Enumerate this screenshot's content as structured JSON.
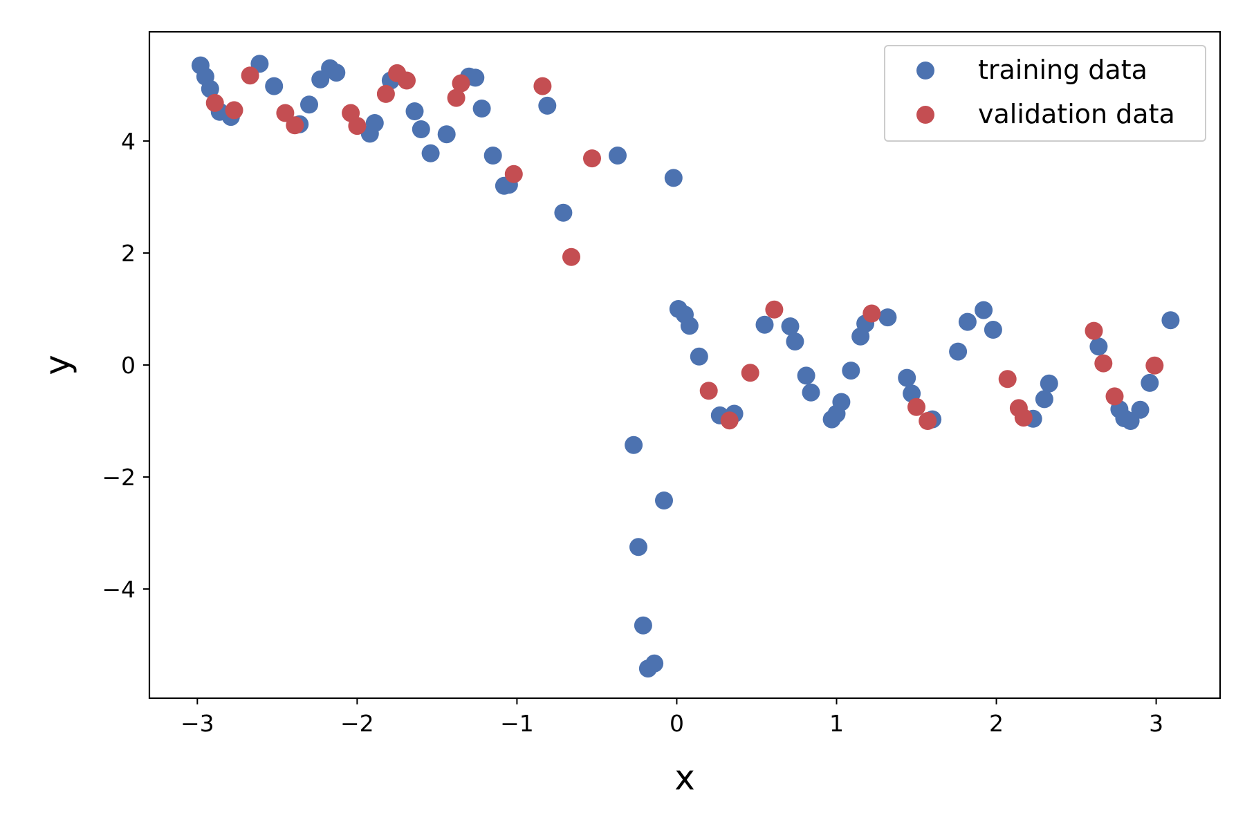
{
  "chart_data": {
    "type": "scatter",
    "title": "",
    "xlabel": "x",
    "ylabel": "y",
    "xlim": [
      -3.3,
      3.4
    ],
    "ylim": [
      -5.95,
      5.95
    ],
    "xticks": [
      -3,
      -2,
      -1,
      0,
      1,
      2,
      3
    ],
    "xtick_labels": [
      "−3",
      "−2",
      "−1",
      "0",
      "1",
      "2",
      "3"
    ],
    "yticks": [
      -4,
      -2,
      0,
      2,
      4
    ],
    "ytick_labels": [
      "−4",
      "−2",
      "0",
      "2",
      "4"
    ],
    "grid": false,
    "legend_position": "top-right",
    "series": [
      {
        "name": "training data",
        "color": "#4c72b0",
        "points": [
          [
            -2.98,
            5.35
          ],
          [
            -2.95,
            5.15
          ],
          [
            -2.92,
            4.93
          ],
          [
            -2.86,
            4.52
          ],
          [
            -2.79,
            4.43
          ],
          [
            -2.61,
            5.38
          ],
          [
            -2.52,
            4.98
          ],
          [
            -2.36,
            4.3
          ],
          [
            -2.3,
            4.65
          ],
          [
            -2.23,
            5.1
          ],
          [
            -2.17,
            5.3
          ],
          [
            -2.13,
            5.22
          ],
          [
            -1.92,
            4.13
          ],
          [
            -1.89,
            4.32
          ],
          [
            -1.79,
            5.08
          ],
          [
            -1.64,
            4.53
          ],
          [
            -1.6,
            4.21
          ],
          [
            -1.54,
            3.78
          ],
          [
            -1.44,
            4.12
          ],
          [
            -1.3,
            5.15
          ],
          [
            -1.26,
            5.13
          ],
          [
            -1.22,
            4.58
          ],
          [
            -1.15,
            3.74
          ],
          [
            -1.08,
            3.2
          ],
          [
            -1.05,
            3.22
          ],
          [
            -0.81,
            4.63
          ],
          [
            -0.71,
            2.72
          ],
          [
            -0.37,
            3.74
          ],
          [
            -0.27,
            -1.43
          ],
          [
            -0.24,
            -3.25
          ],
          [
            -0.21,
            -4.65
          ],
          [
            -0.18,
            -5.42
          ],
          [
            -0.14,
            -5.33
          ],
          [
            -0.08,
            -2.42
          ],
          [
            -0.02,
            3.34
          ],
          [
            0.01,
            1.0
          ],
          [
            0.05,
            0.9
          ],
          [
            0.08,
            0.7
          ],
          [
            0.14,
            0.15
          ],
          [
            0.27,
            -0.9
          ],
          [
            0.36,
            -0.87
          ],
          [
            0.55,
            0.72
          ],
          [
            0.71,
            0.69
          ],
          [
            0.74,
            0.42
          ],
          [
            0.81,
            -0.19
          ],
          [
            0.84,
            -0.49
          ],
          [
            0.97,
            -0.97
          ],
          [
            1.0,
            -0.87
          ],
          [
            1.03,
            -0.66
          ],
          [
            1.09,
            -0.1
          ],
          [
            1.15,
            0.51
          ],
          [
            1.18,
            0.74
          ],
          [
            1.32,
            0.85
          ],
          [
            1.44,
            -0.23
          ],
          [
            1.47,
            -0.51
          ],
          [
            1.6,
            -0.97
          ],
          [
            1.76,
            0.24
          ],
          [
            1.82,
            0.77
          ],
          [
            1.92,
            0.98
          ],
          [
            1.98,
            0.63
          ],
          [
            2.23,
            -0.96
          ],
          [
            2.3,
            -0.61
          ],
          [
            2.33,
            -0.33
          ],
          [
            2.64,
            0.33
          ],
          [
            2.77,
            -0.79
          ],
          [
            2.8,
            -0.95
          ],
          [
            2.84,
            -1.0
          ],
          [
            2.9,
            -0.8
          ],
          [
            2.96,
            -0.32
          ],
          [
            3.09,
            0.8
          ]
        ]
      },
      {
        "name": "validation data",
        "color": "#c44e52",
        "points": [
          [
            -2.89,
            4.68
          ],
          [
            -2.77,
            4.55
          ],
          [
            -2.67,
            5.17
          ],
          [
            -2.45,
            4.5
          ],
          [
            -2.39,
            4.28
          ],
          [
            -2.04,
            4.5
          ],
          [
            -2.0,
            4.27
          ],
          [
            -1.82,
            4.84
          ],
          [
            -1.75,
            5.21
          ],
          [
            -1.69,
            5.08
          ],
          [
            -1.38,
            4.77
          ],
          [
            -1.35,
            5.03
          ],
          [
            -1.02,
            3.41
          ],
          [
            -0.84,
            4.98
          ],
          [
            -0.66,
            1.93
          ],
          [
            -0.53,
            3.69
          ],
          [
            0.2,
            -0.46
          ],
          [
            0.33,
            -0.99
          ],
          [
            0.46,
            -0.14
          ],
          [
            0.61,
            0.99
          ],
          [
            1.22,
            0.92
          ],
          [
            1.5,
            -0.75
          ],
          [
            1.57,
            -1.0
          ],
          [
            2.07,
            -0.25
          ],
          [
            2.14,
            -0.77
          ],
          [
            2.17,
            -0.94
          ],
          [
            2.61,
            0.61
          ],
          [
            2.67,
            0.03
          ],
          [
            2.74,
            -0.56
          ],
          [
            2.99,
            -0.01
          ]
        ]
      }
    ]
  }
}
